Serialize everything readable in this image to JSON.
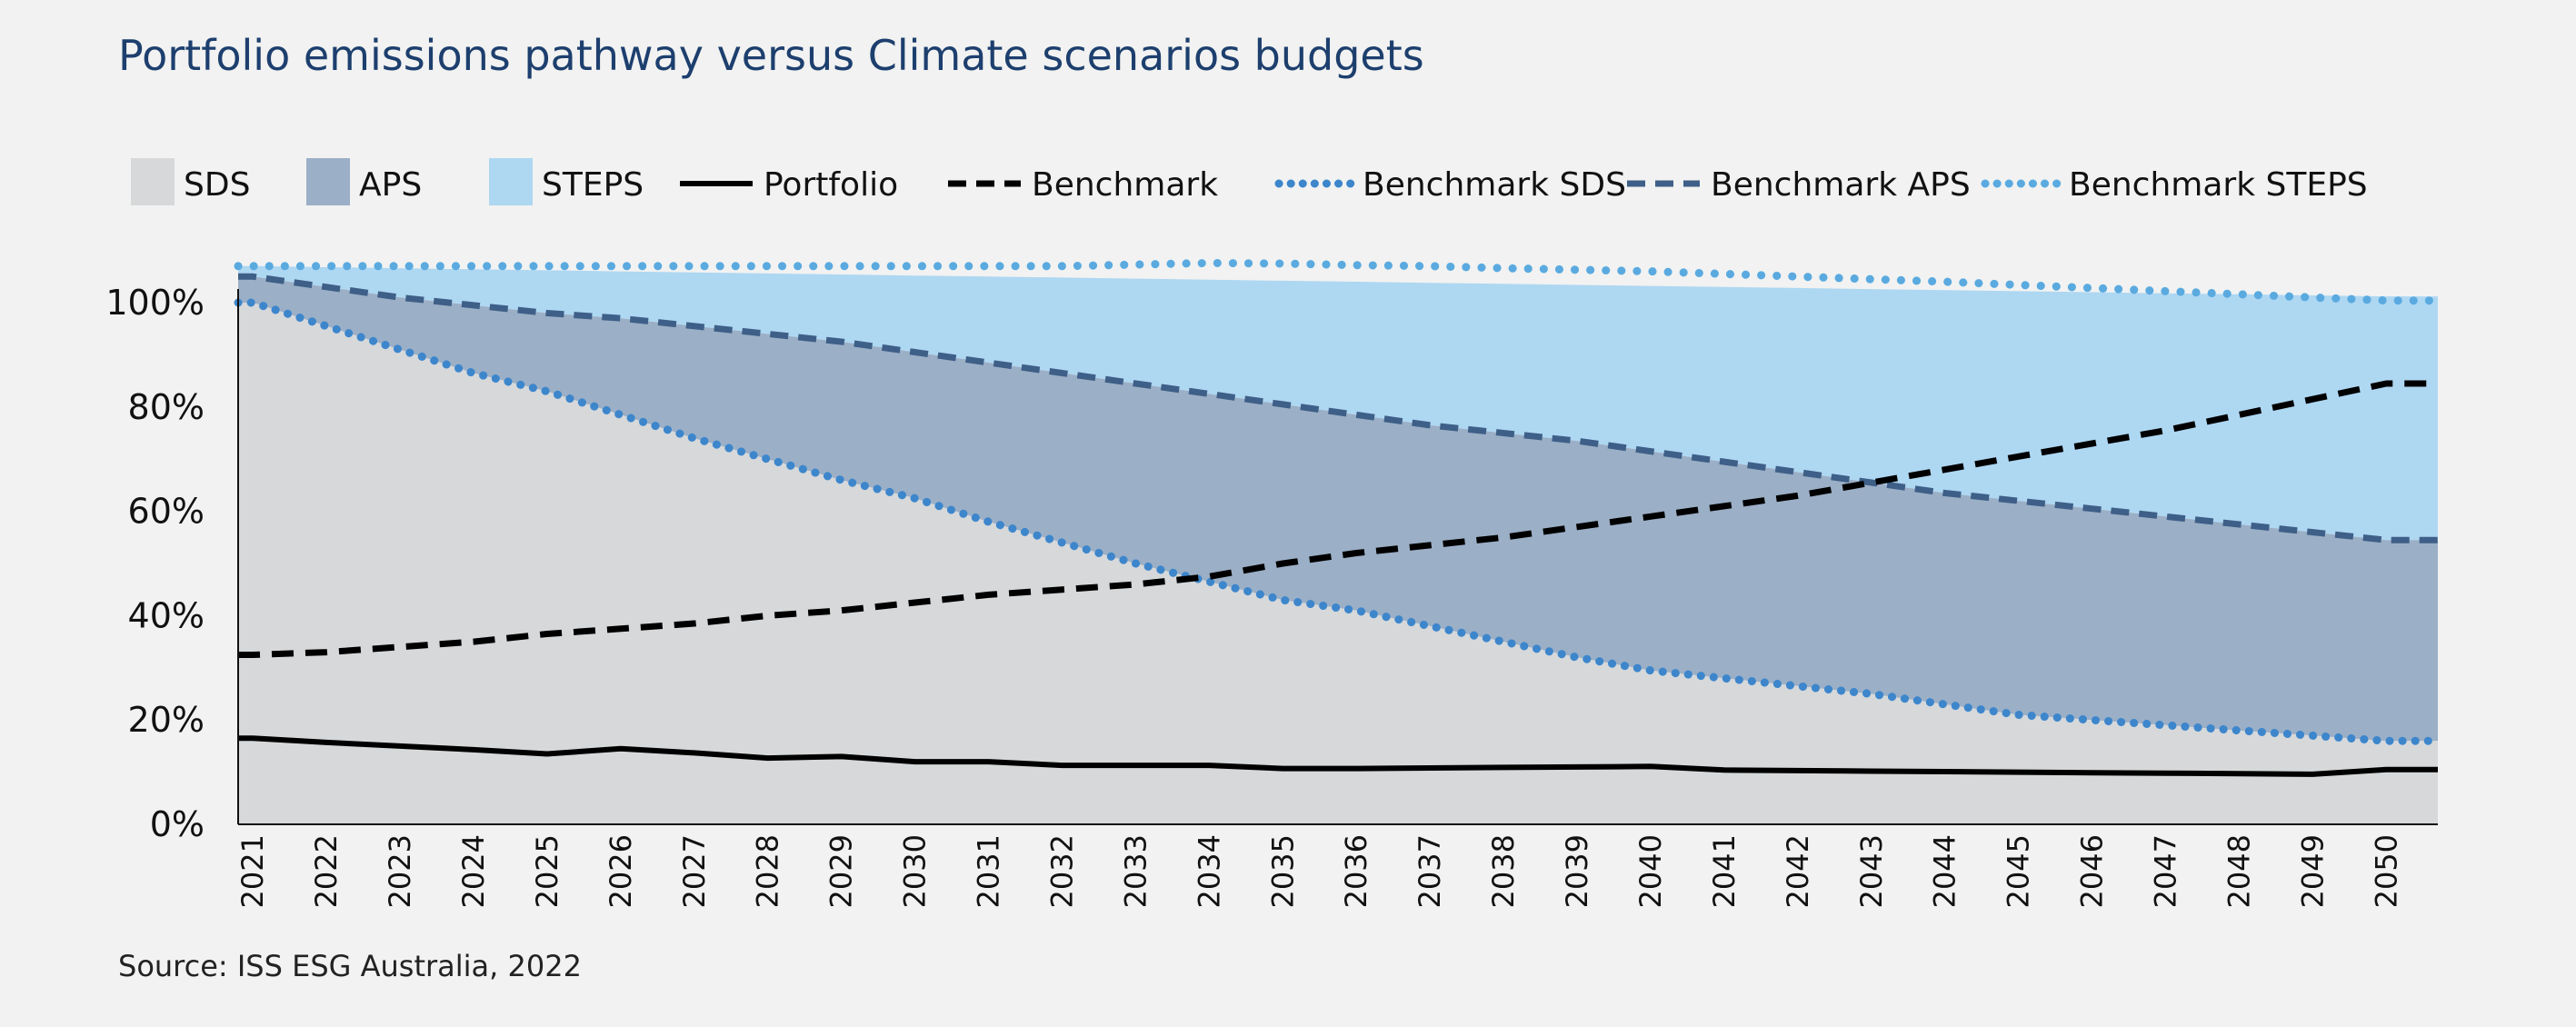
{
  "title": "Portfolio emissions pathway versus Climate scenarios budgets",
  "source": "Source: ISS ESG Australia, 2022",
  "colors": {
    "sds": "#d6d8da",
    "aps": "#9bafc6",
    "steps": "#aed7f2",
    "portfolio": "#000000",
    "benchmark": "#000000",
    "benchmark_sds": "#3d86cc",
    "benchmark_aps": "#3e5f87",
    "benchmark_steps": "#5aaae0"
  },
  "chart_data": {
    "type": "area",
    "title": "Portfolio emissions pathway versus Climate scenarios budgets",
    "xlabel": "",
    "ylabel": "",
    "ylim": [
      0,
      100
    ],
    "x_range": [
      2020.8,
      2050.7
    ],
    "y_ticks": [
      0,
      20,
      40,
      60,
      80,
      100
    ],
    "y_tick_labels": [
      "0%",
      "20%",
      "40%",
      "60%",
      "80%",
      "100%"
    ],
    "x": [
      2021,
      2022,
      2023,
      2024,
      2025,
      2026,
      2027,
      2028,
      2029,
      2030,
      2031,
      2032,
      2033,
      2034,
      2035,
      2036,
      2037,
      2038,
      2039,
      2040,
      2041,
      2042,
      2043,
      2044,
      2045,
      2046,
      2047,
      2048,
      2049,
      2050
    ],
    "x_tick_labels": [
      "2021",
      "2022",
      "2023",
      "2024",
      "2025",
      "2026",
      "2027",
      "2028",
      "2029",
      "2030",
      "2031",
      "2032",
      "2033",
      "2034",
      "2035",
      "2036",
      "2037",
      "2038",
      "2039",
      "2040",
      "2041",
      "2042",
      "2043",
      "2044",
      "2045",
      "2046",
      "2047",
      "2048",
      "2049",
      "2050"
    ],
    "grid": false,
    "legend_position": "top",
    "legend": [
      {
        "name": "SDS",
        "kind": "area",
        "series": "SDS"
      },
      {
        "name": "APS",
        "kind": "area",
        "series": "APS"
      },
      {
        "name": "STEPS",
        "kind": "area",
        "series": "STEPS"
      },
      {
        "name": "Portfolio",
        "kind": "line-solid",
        "series": "Portfolio"
      },
      {
        "name": "Benchmark",
        "kind": "line-dashed",
        "series": "Benchmark"
      },
      {
        "name": "Benchmark SDS",
        "kind": "line-dotted",
        "series": "Benchmark SDS"
      },
      {
        "name": "Benchmark APS",
        "kind": "line-dashed",
        "series": "Benchmark APS"
      },
      {
        "name": "Benchmark STEPS",
        "kind": "line-dotted",
        "series": "Benchmark STEPS"
      }
    ],
    "series": [
      {
        "name": "SDS",
        "kind": "area",
        "values": [
          100,
          95.5,
          91,
          86.5,
          83,
          78.5,
          74,
          70,
          66,
          62.5,
          58,
          54,
          50,
          46.5,
          43,
          41,
          38,
          35,
          32,
          29.5,
          28,
          26.5,
          25,
          23,
          21,
          20,
          19,
          18,
          17,
          16
        ]
      },
      {
        "name": "APS",
        "kind": "area",
        "values": [
          105,
          103,
          101,
          99.5,
          98,
          97,
          95.5,
          94,
          92.5,
          90.5,
          88.5,
          86.5,
          84.5,
          82.5,
          80.5,
          78.5,
          76.5,
          75,
          73.5,
          71.5,
          69.5,
          67.5,
          65.5,
          63.5,
          62,
          60.5,
          59,
          57.5,
          56,
          54.5
        ]
      },
      {
        "name": "STEPS",
        "kind": "area",
        "values": [
          107,
          106.8,
          106.6,
          106.4,
          106.2,
          106,
          105.8,
          105.6,
          105.4,
          105.2,
          105,
          104.8,
          104.6,
          104.4,
          104.2,
          104,
          103.8,
          103.6,
          103.4,
          103.2,
          103,
          102.8,
          102.6,
          102.4,
          102.2,
          102,
          101.8,
          101.6,
          101.4,
          101.2
        ]
      },
      {
        "name": "Portfolio",
        "kind": "line",
        "values": [
          16.5,
          15.7,
          15,
          14.3,
          13.5,
          14.5,
          13.7,
          12.7,
          13,
          12,
          12,
          11.3,
          11.3,
          11.3,
          10.7,
          10.7,
          10.8,
          10.9,
          11,
          11.1,
          10.4,
          10.3,
          10.2,
          10.1,
          10,
          9.9,
          9.8,
          9.7,
          9.6,
          10.5
        ]
      },
      {
        "name": "Benchmark",
        "kind": "line",
        "values": [
          32.5,
          33,
          34,
          35,
          36.5,
          37.5,
          38.5,
          40,
          41,
          42.5,
          44,
          45,
          46,
          47.5,
          50,
          52,
          53.5,
          55,
          57,
          59,
          61,
          63,
          65.5,
          68,
          70.5,
          73,
          75.5,
          78.5,
          81.5,
          84.5
        ]
      },
      {
        "name": "Benchmark SDS",
        "kind": "line",
        "values": [
          100,
          95.5,
          91,
          86.5,
          83,
          78.5,
          74,
          70,
          66,
          62.5,
          58,
          54,
          50,
          46.5,
          43,
          41,
          38,
          35,
          32,
          29.5,
          28,
          26.5,
          25,
          23,
          21,
          20,
          19,
          18,
          17,
          16
        ]
      },
      {
        "name": "Benchmark APS",
        "kind": "line",
        "values": [
          105,
          103,
          101,
          99.5,
          98,
          97,
          95.5,
          94,
          92.5,
          90.5,
          88.5,
          86.5,
          84.5,
          82.5,
          80.5,
          78.5,
          76.5,
          75,
          73.5,
          71.5,
          69.5,
          67.5,
          65.5,
          63.5,
          62,
          60.5,
          59,
          57.5,
          56,
          54.5
        ]
      },
      {
        "name": "Benchmark STEPS",
        "kind": "line",
        "values": [
          107,
          107,
          107,
          107,
          107,
          107,
          107,
          107,
          107,
          107,
          107,
          107,
          107.3,
          107.6,
          107.5,
          107.2,
          107,
          106.6,
          106.3,
          106,
          105.5,
          105,
          104.5,
          104,
          103.4,
          102.8,
          102.2,
          101.6,
          101,
          100.4
        ]
      }
    ]
  }
}
